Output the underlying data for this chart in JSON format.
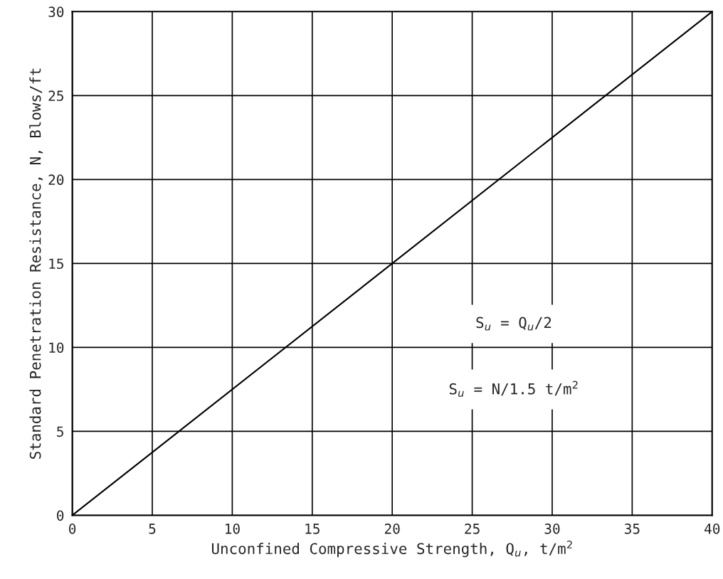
{
  "chart_data": {
    "type": "line",
    "xlabel": "Unconfined Compressive Strength, Q$_{u}$, t/m$^{2}$",
    "ylabel": "Standard Penetration Resistance, N, Blows/ft",
    "series": [
      {
        "color": "#000000",
        "x": [
          0,
          40
        ],
        "values": [
          0,
          30
        ]
      }
    ],
    "xlim": [
      0,
      40
    ],
    "ylim": [
      0,
      30
    ],
    "xticks": [
      0,
      5,
      10,
      15,
      20,
      25,
      30,
      35,
      40
    ],
    "yticks": [
      0,
      5,
      10,
      15,
      20,
      25,
      30
    ],
    "grid": true,
    "marker": "none",
    "line_style": "solid",
    "annotations": [
      "S$_{u}$ = Q$_{u}$/2",
      "S$_{u}$ = N/1.5 t/m$^{2}$"
    ]
  }
}
